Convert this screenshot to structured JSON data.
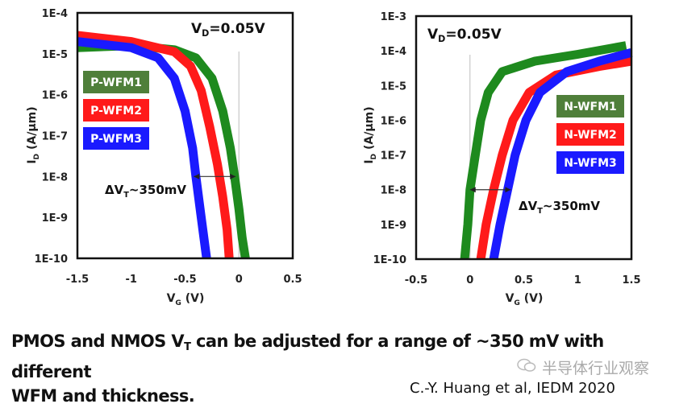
{
  "chart_data": [
    {
      "type": "line",
      "name": "PMOS",
      "xlabel": "V",
      "xlabel_sub": "G",
      "xlabel_unit": " (V)",
      "ylabel": "I",
      "ylabel_sub": "D",
      "ylabel_unit": " (A/μm)",
      "yscale": "log",
      "xlim": [
        -1.5,
        0.5
      ],
      "ylim_log10": [
        -10,
        -4
      ],
      "x_ticks": [
        "-1.5",
        "-1",
        "-0.5",
        "0",
        "0.5"
      ],
      "x_tick_values": [
        -1.5,
        -1,
        -0.5,
        0,
        0.5
      ],
      "y_ticks": [
        "1E-4",
        "1E-5",
        "1E-6",
        "1E-7",
        "1E-8",
        "1E-9",
        "1E-10"
      ],
      "y_tick_log10": [
        -4,
        -5,
        -6,
        -7,
        -8,
        -9,
        -10
      ],
      "annotation_vd": "V",
      "annotation_vd_sub": "D",
      "annotation_vd_val": "=0.05V",
      "annotation_dvt": "ΔV",
      "annotation_dvt_sub": "T",
      "annotation_dvt_val": "~350mV",
      "vline_x": 0,
      "arrow": {
        "x1": -0.42,
        "x2": -0.03,
        "log10_y": -8
      },
      "legend_placement": "left",
      "series": [
        {
          "name": "P-WFM1",
          "color": "#1e8a1e",
          "legend_color": "#4f7f3a",
          "x": [
            -1.5,
            -1.0,
            -0.6,
            -0.4,
            -0.25,
            -0.15,
            -0.08,
            -0.04,
            0.0,
            0.03,
            0.06
          ],
          "log10_y": [
            -4.85,
            -4.8,
            -4.9,
            -5.1,
            -5.6,
            -6.4,
            -7.3,
            -8.0,
            -8.8,
            -9.5,
            -10
          ]
        },
        {
          "name": "P-WFM2",
          "color": "#ff1a1a",
          "legend_color": "#ff1a1a",
          "x": [
            -1.5,
            -1.0,
            -0.6,
            -0.45,
            -0.35,
            -0.27,
            -0.2,
            -0.15,
            -0.11,
            -0.09
          ],
          "log10_y": [
            -4.55,
            -4.7,
            -4.95,
            -5.3,
            -5.9,
            -6.8,
            -7.7,
            -8.5,
            -9.3,
            -10
          ]
        },
        {
          "name": "P-WFM3",
          "color": "#1a1aff",
          "legend_color": "#1a1aff",
          "x": [
            -1.5,
            -1.0,
            -0.75,
            -0.6,
            -0.5,
            -0.43,
            -0.4,
            -0.35,
            -0.3
          ],
          "log10_y": [
            -4.7,
            -4.85,
            -5.1,
            -5.6,
            -6.4,
            -7.3,
            -8.0,
            -9.0,
            -10
          ]
        }
      ]
    },
    {
      "type": "line",
      "name": "NMOS",
      "xlabel": "V",
      "xlabel_sub": "G",
      "xlabel_unit": " (V)",
      "ylabel": "I",
      "ylabel_sub": "D",
      "ylabel_unit": " (A/μm)",
      "yscale": "log",
      "xlim": [
        -0.5,
        1.5
      ],
      "ylim_log10": [
        -10,
        -3
      ],
      "x_ticks": [
        "-0.5",
        "0",
        "0.5",
        "1",
        "1.5"
      ],
      "x_tick_values": [
        -0.5,
        0,
        0.5,
        1,
        1.5
      ],
      "y_ticks": [
        "1E-3",
        "1E-4",
        "1E-5",
        "1E-6",
        "1E-7",
        "1E-8",
        "1E-9",
        "1E-10"
      ],
      "y_tick_log10": [
        -3,
        -4,
        -5,
        -6,
        -7,
        -8,
        -9,
        -10
      ],
      "annotation_vd": "V",
      "annotation_vd_sub": "D",
      "annotation_vd_val": "=0.05V",
      "annotation_dvt": "ΔV",
      "annotation_dvt_sub": "T",
      "annotation_dvt_val": "~350mV",
      "vline_x": 0,
      "arrow": {
        "x1": 0.0,
        "x2": 0.38,
        "log10_y": -8
      },
      "legend_placement": "right",
      "series": [
        {
          "name": "N-WFM1",
          "color": "#1e8a1e",
          "legend_color": "#4f7f3a",
          "x": [
            -0.05,
            -0.02,
            0.0,
            0.05,
            0.1,
            0.17,
            0.3,
            0.6,
            1.0,
            1.45
          ],
          "log10_y": [
            -10,
            -9,
            -8.0,
            -7,
            -6,
            -5.2,
            -4.6,
            -4.3,
            -4.1,
            -3.85
          ]
        },
        {
          "name": "N-WFM2",
          "color": "#ff1a1a",
          "legend_color": "#ff1a1a",
          "x": [
            0.1,
            0.15,
            0.22,
            0.3,
            0.4,
            0.55,
            0.8,
            1.2,
            1.5
          ],
          "log10_y": [
            -10,
            -9,
            -8,
            -7,
            -6,
            -5.2,
            -4.7,
            -4.45,
            -4.3
          ]
        },
        {
          "name": "N-WFM3",
          "color": "#1a1aff",
          "legend_color": "#1a1aff",
          "x": [
            0.22,
            0.28,
            0.35,
            0.42,
            0.52,
            0.65,
            0.9,
            1.2,
            1.5
          ],
          "log10_y": [
            -10,
            -9,
            -8,
            -7,
            -6,
            -5.2,
            -4.6,
            -4.3,
            -4.05
          ]
        }
      ]
    }
  ],
  "caption": {
    "part1": "PMOS and NMOS V",
    "sub": "T",
    "part2": " can be adjusted for a range of ~350 mV with different",
    "line2": "WFM and thickness."
  },
  "citation": "C.-Y. Huang et al, IEDM 2020",
  "watermark": "半导体行业观察"
}
